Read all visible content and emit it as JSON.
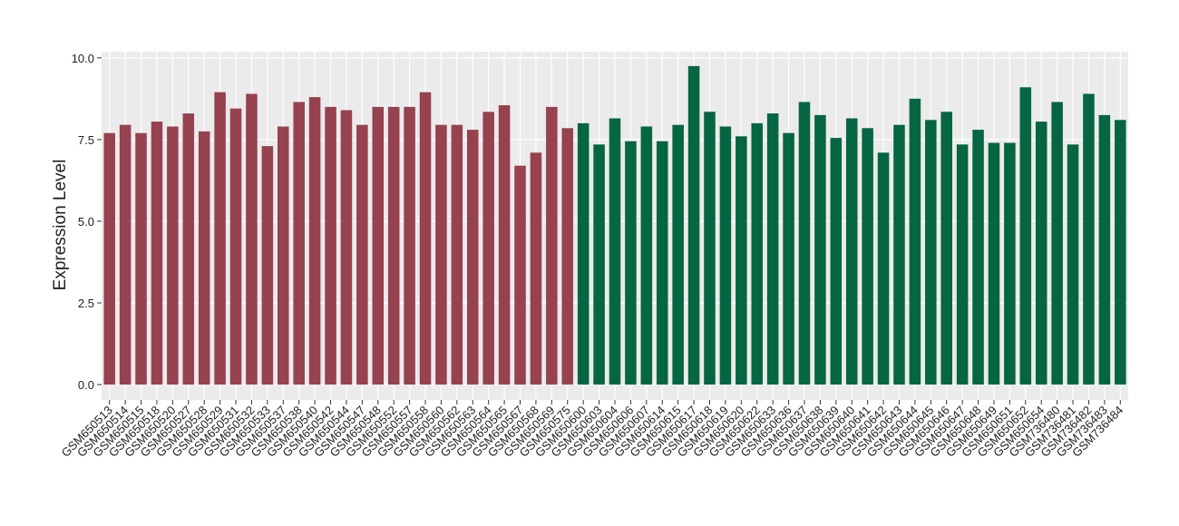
{
  "chart_data": {
    "type": "bar",
    "y_label": "Expression Level",
    "categories": [
      "GSM650513",
      "GSM650514",
      "GSM650515",
      "GSM650518",
      "GSM650520",
      "GSM650527",
      "GSM650528",
      "GSM650529",
      "GSM650531",
      "GSM650532",
      "GSM650533",
      "GSM650537",
      "GSM650538",
      "GSM650540",
      "GSM650542",
      "GSM650544",
      "GSM650547",
      "GSM650548",
      "GSM650552",
      "GSM650557",
      "GSM650558",
      "GSM650560",
      "GSM650562",
      "GSM650563",
      "GSM650564",
      "GSM650565",
      "GSM650567",
      "GSM650568",
      "GSM650569",
      "GSM650575",
      "GSM650600",
      "GSM650603",
      "GSM650604",
      "GSM650606",
      "GSM650607",
      "GSM650614",
      "GSM650615",
      "GSM650617",
      "GSM650618",
      "GSM650619",
      "GSM650620",
      "GSM650622",
      "GSM650633",
      "GSM650636",
      "GSM650637",
      "GSM650638",
      "GSM650639",
      "GSM650640",
      "GSM650641",
      "GSM650642",
      "GSM650643",
      "GSM650644",
      "GSM650645",
      "GSM650646",
      "GSM650647",
      "GSM650648",
      "GSM650649",
      "GSM650651",
      "GSM650652",
      "GSM650654",
      "GSM736480",
      "GSM736481",
      "GSM736482",
      "GSM736483",
      "GSM736484"
    ],
    "series": [
      {
        "color": "#96424f",
        "values": [
          7.7,
          7.95,
          7.7,
          8.05,
          7.9,
          8.3,
          7.75,
          8.95,
          8.45,
          8.9,
          7.3,
          7.9,
          8.65,
          8.8,
          8.5,
          8.4,
          7.95,
          8.5,
          8.5,
          8.5,
          8.95,
          7.95,
          7.95,
          7.8,
          8.35,
          8.55,
          6.7,
          7.1,
          8.5,
          7.85,
          null,
          null,
          null,
          null,
          null,
          null,
          null,
          null,
          null,
          null,
          null,
          null,
          null,
          null,
          null,
          null,
          null,
          null,
          null,
          null,
          null,
          null,
          null,
          null,
          null,
          null,
          null,
          null,
          null,
          null,
          null,
          null,
          null,
          null,
          null
        ]
      },
      {
        "color": "#056641",
        "values": [
          null,
          null,
          null,
          null,
          null,
          null,
          null,
          null,
          null,
          null,
          null,
          null,
          null,
          null,
          null,
          null,
          null,
          null,
          null,
          null,
          null,
          null,
          null,
          null,
          null,
          null,
          null,
          null,
          null,
          null,
          8.0,
          7.35,
          8.15,
          7.45,
          7.9,
          7.45,
          7.95,
          9.75,
          8.35,
          7.9,
          7.6,
          8.0,
          8.3,
          7.7,
          8.65,
          8.25,
          7.55,
          8.15,
          7.85,
          7.1,
          7.95,
          8.75,
          8.1,
          8.35,
          7.35,
          7.8,
          7.4,
          7.4,
          9.1,
          8.05,
          8.65,
          7.35,
          8.9,
          8.25,
          8.1
        ]
      }
    ],
    "ylim": [
      -0.47,
      10.19
    ],
    "yticks": [
      {
        "value": 0,
        "label": "0.0"
      },
      {
        "value": 2.5,
        "label": "2.5"
      },
      {
        "value": 5,
        "label": "5.0"
      },
      {
        "value": 7.5,
        "label": "7.5"
      },
      {
        "value": 10,
        "label": "10.0"
      }
    ],
    "grid": true
  }
}
